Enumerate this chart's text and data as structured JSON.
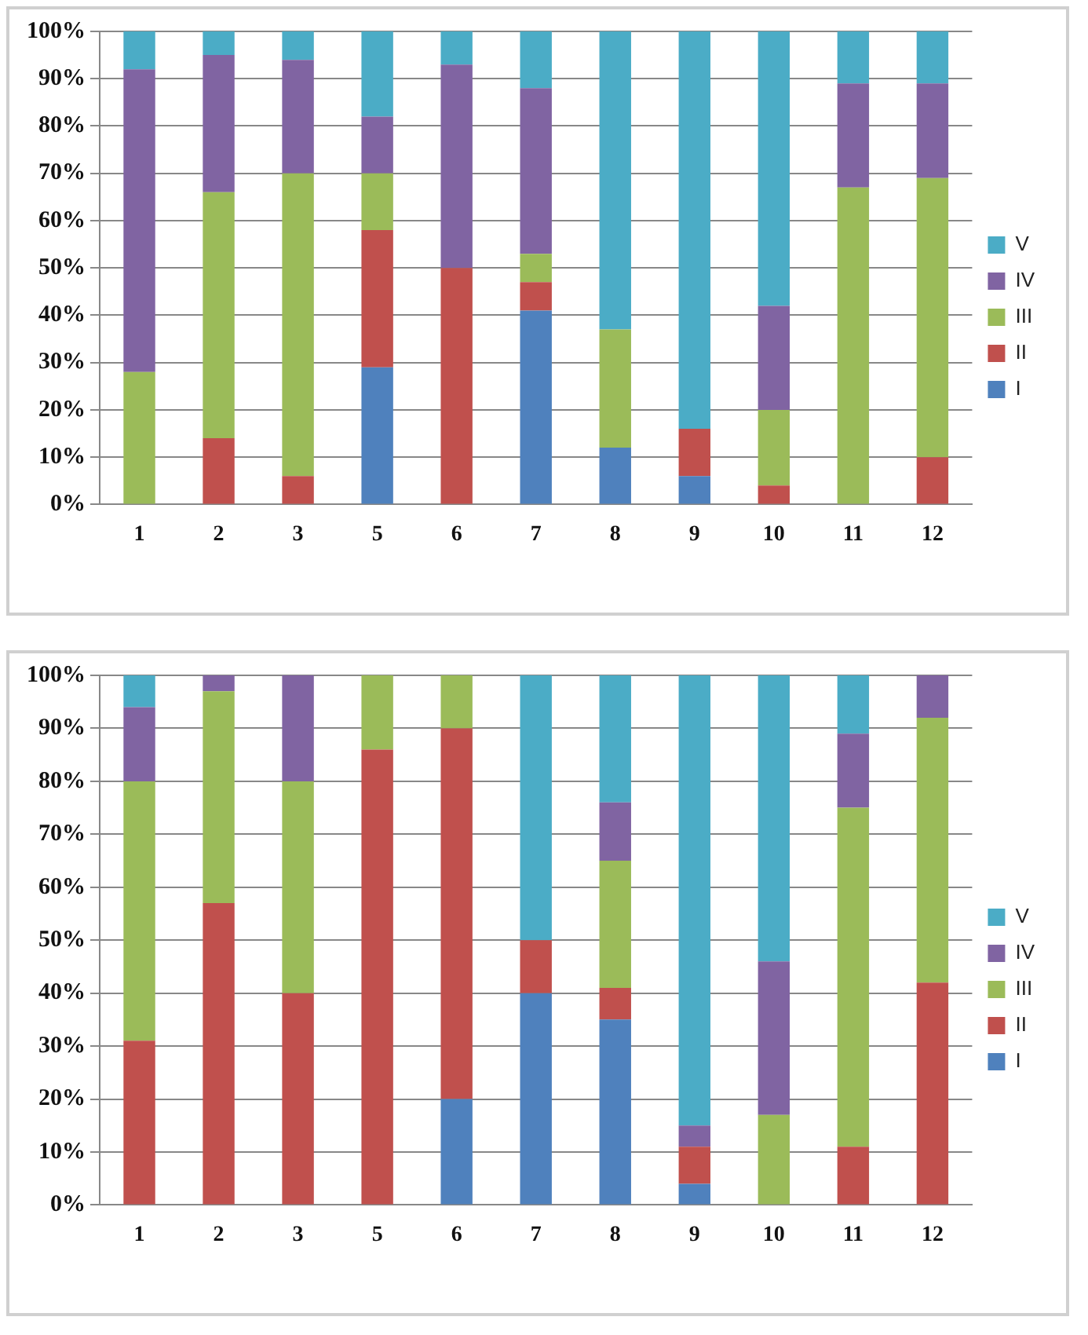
{
  "chart_data": [
    {
      "type": "bar",
      "stacked": true,
      "categories": [
        "1",
        "2",
        "3",
        "5",
        "6",
        "7",
        "8",
        "9",
        "10",
        "11",
        "12"
      ],
      "ylim": [
        0,
        100
      ],
      "yticks": [
        {
          "value": 0,
          "label": "0%"
        },
        {
          "value": 10,
          "label": "10%"
        },
        {
          "value": 20,
          "label": "20%"
        },
        {
          "value": 30,
          "label": "30%"
        },
        {
          "value": 40,
          "label": "40%"
        },
        {
          "value": 50,
          "label": "50%"
        },
        {
          "value": 60,
          "label": "60%"
        },
        {
          "value": 70,
          "label": "70%"
        },
        {
          "value": 80,
          "label": "80%"
        },
        {
          "value": 90,
          "label": "90%"
        },
        {
          "value": 100,
          "label": "100%"
        }
      ],
      "grid": "y",
      "legend": "right",
      "series": [
        {
          "name": "I",
          "color": "#4f81bd",
          "values": [
            0,
            0,
            0,
            29,
            0,
            41,
            12,
            6,
            0,
            0,
            0
          ]
        },
        {
          "name": "II",
          "color": "#c0504d",
          "values": [
            0,
            14,
            6,
            29,
            50,
            6,
            0,
            10,
            4,
            0,
            10
          ]
        },
        {
          "name": "III",
          "color": "#9bbb59",
          "values": [
            28,
            52,
            64,
            12,
            0,
            6,
            25,
            0,
            16,
            67,
            59
          ]
        },
        {
          "name": "IV",
          "color": "#8064a2",
          "values": [
            64,
            29,
            24,
            12,
            43,
            35,
            0,
            0,
            22,
            22,
            20
          ]
        },
        {
          "name": "V",
          "color": "#4bacc6",
          "values": [
            8,
            5,
            6,
            18,
            7,
            12,
            63,
            84,
            58,
            11,
            11
          ]
        }
      ]
    },
    {
      "type": "bar",
      "stacked": true,
      "categories": [
        "1",
        "2",
        "3",
        "5",
        "6",
        "7",
        "8",
        "9",
        "10",
        "11",
        "12"
      ],
      "ylim": [
        0,
        100
      ],
      "yticks": [
        {
          "value": 0,
          "label": "0%"
        },
        {
          "value": 10,
          "label": "10%"
        },
        {
          "value": 20,
          "label": "20%"
        },
        {
          "value": 30,
          "label": "30%"
        },
        {
          "value": 40,
          "label": "40%"
        },
        {
          "value": 50,
          "label": "50%"
        },
        {
          "value": 60,
          "label": "60%"
        },
        {
          "value": 70,
          "label": "70%"
        },
        {
          "value": 80,
          "label": "80%"
        },
        {
          "value": 90,
          "label": "90%"
        },
        {
          "value": 100,
          "label": "100%"
        }
      ],
      "grid": "y",
      "legend": "right",
      "series": [
        {
          "name": "I",
          "color": "#4f81bd",
          "values": [
            0,
            0,
            0,
            0,
            20,
            40,
            35,
            4,
            0,
            0,
            0
          ]
        },
        {
          "name": "II",
          "color": "#c0504d",
          "values": [
            31,
            57,
            40,
            86,
            70,
            10,
            6,
            7,
            0,
            11,
            42
          ]
        },
        {
          "name": "III",
          "color": "#9bbb59",
          "values": [
            49,
            40,
            40,
            14,
            10,
            0,
            24,
            0,
            17,
            64,
            50
          ]
        },
        {
          "name": "IV",
          "color": "#8064a2",
          "values": [
            14,
            3,
            20,
            0,
            0,
            0,
            11,
            4,
            29,
            14,
            8
          ]
        },
        {
          "name": "V",
          "color": "#4bacc6",
          "values": [
            6,
            0,
            0,
            0,
            0,
            50,
            24,
            85,
            54,
            11,
            0
          ]
        }
      ]
    }
  ]
}
